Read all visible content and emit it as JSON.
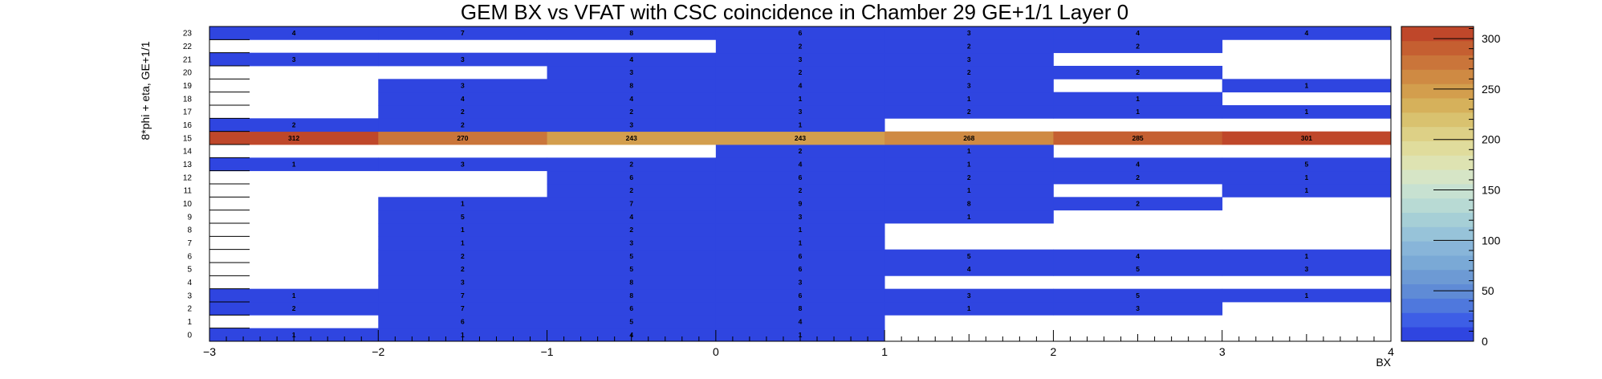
{
  "chart_data": {
    "type": "heatmap",
    "title": "GEM BX vs VFAT with CSC coincidence in Chamber 29 GE+1/1 Layer 0",
    "xlabel": "BX",
    "ylabel": "8*phi + eta, GE+1/1",
    "x_bins": [
      -3,
      -2,
      -1,
      0,
      1,
      2,
      3,
      4
    ],
    "x_ticks": [
      "−3",
      "−2",
      "−1",
      "0",
      "1",
      "2",
      "3",
      "4"
    ],
    "y_range": [
      0,
      24
    ],
    "y_ticks": [
      "0",
      "1",
      "2",
      "3",
      "4",
      "5",
      "6",
      "7",
      "8",
      "9",
      "10",
      "11",
      "12",
      "13",
      "14",
      "15",
      "16",
      "17",
      "18",
      "19",
      "20",
      "21",
      "22",
      "23"
    ],
    "z_range": [
      0,
      312
    ],
    "z_ticks": [
      "0",
      "50",
      "100",
      "150",
      "200",
      "250",
      "300"
    ],
    "rows": {
      "0": [
        1,
        1,
        4,
        1,
        null,
        null,
        null
      ],
      "1": [
        null,
        6,
        5,
        4,
        null,
        null,
        null
      ],
      "2": [
        2,
        7,
        6,
        8,
        1,
        3,
        null
      ],
      "3": [
        1,
        7,
        8,
        6,
        3,
        5,
        1
      ],
      "4": [
        null,
        3,
        8,
        3,
        null,
        null,
        null
      ],
      "5": [
        null,
        2,
        5,
        6,
        4,
        5,
        3
      ],
      "6": [
        null,
        2,
        5,
        6,
        5,
        4,
        1
      ],
      "7": [
        null,
        1,
        3,
        1,
        null,
        null,
        null
      ],
      "8": [
        null,
        1,
        2,
        1,
        null,
        null,
        null
      ],
      "9": [
        null,
        5,
        4,
        3,
        1,
        null,
        null
      ],
      "10": [
        null,
        1,
        7,
        9,
        8,
        2,
        null
      ],
      "11": [
        null,
        null,
        2,
        2,
        1,
        null,
        1
      ],
      "12": [
        null,
        null,
        6,
        6,
        2,
        2,
        1
      ],
      "13": [
        1,
        3,
        2,
        4,
        1,
        4,
        5
      ],
      "14": [
        null,
        null,
        null,
        2,
        1,
        null,
        null
      ],
      "15": [
        312,
        270,
        243,
        243,
        268,
        285,
        301
      ],
      "16": [
        2,
        2,
        3,
        1,
        null,
        null,
        null
      ],
      "17": [
        null,
        2,
        2,
        3,
        2,
        1,
        1
      ],
      "18": [
        null,
        4,
        4,
        1,
        1,
        1,
        null
      ],
      "19": [
        null,
        3,
        8,
        4,
        3,
        null,
        1
      ],
      "20": [
        null,
        null,
        3,
        2,
        2,
        2,
        null
      ],
      "21": [
        3,
        3,
        4,
        3,
        3,
        null,
        null
      ],
      "22": [
        null,
        null,
        null,
        2,
        2,
        2,
        null
      ],
      "23": [
        4,
        7,
        8,
        6,
        3,
        4,
        4
      ]
    },
    "palette": [
      "#2f45e0",
      "#3d5ee6",
      "#4f78dd",
      "#5f8bd6",
      "#6d9ad4",
      "#7aa9d6",
      "#88b5d9",
      "#97c3d9",
      "#a6cfd6",
      "#b8dad4",
      "#c7e1d1",
      "#d6e5c6",
      "#dee3b2",
      "#e0dc9c",
      "#ddd086",
      "#d9c26f",
      "#d6b15b",
      "#d39e4d",
      "#cf8a43",
      "#ca753a",
      "#c55f31",
      "#bf472a"
    ],
    "grid": false,
    "legend": "colorbar-right"
  }
}
